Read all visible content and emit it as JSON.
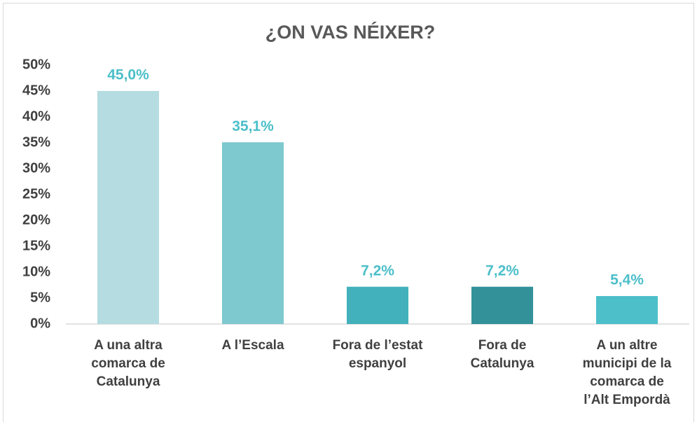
{
  "chart_data": {
    "type": "bar",
    "title": "¿ON VAS NÉIXER?",
    "categories": [
      "A una altra\ncomarca de\nCatalunya",
      "A l’Escala",
      "Fora de l’estat\nespanyol",
      "Fora de\nCatalunya",
      "A un altre\nmunicipi de la\ncomarca de\nl’Alt Empordà"
    ],
    "values": [
      45.0,
      35.1,
      7.2,
      7.2,
      5.4
    ],
    "value_labels": [
      "45,0%",
      "35,1%",
      "7,2%",
      "7,2%",
      "5,4%"
    ],
    "colors": [
      "#b4dce1",
      "#7ec8cf",
      "#42b1bb",
      "#329199",
      "#4cbfc9"
    ],
    "ylim": [
      0,
      50
    ],
    "yticks": [
      {
        "value": 0,
        "label": "0%"
      },
      {
        "value": 5,
        "label": "5%"
      },
      {
        "value": 10,
        "label": "10%"
      },
      {
        "value": 15,
        "label": "15%"
      },
      {
        "value": 20,
        "label": "20%"
      },
      {
        "value": 25,
        "label": "25%"
      },
      {
        "value": 30,
        "label": "30%"
      },
      {
        "value": 35,
        "label": "35%"
      },
      {
        "value": 40,
        "label": "40%"
      },
      {
        "value": 45,
        "label": "45%"
      },
      {
        "value": 50,
        "label": "50%"
      }
    ],
    "grid": false
  }
}
